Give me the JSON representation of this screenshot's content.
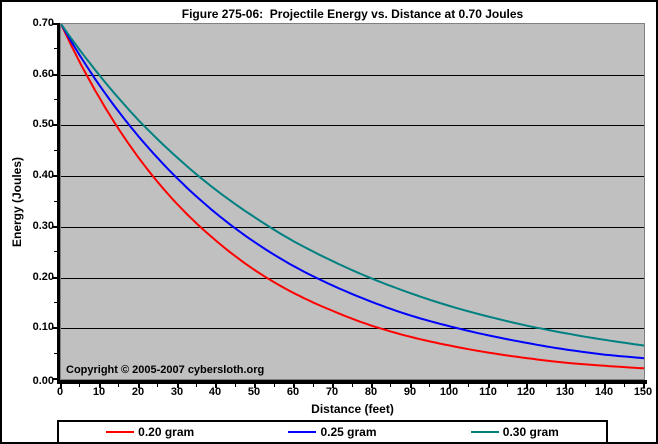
{
  "page": {
    "title": "Figure 275-06:  Projectile Energy vs. Distance at 0.70 Joules",
    "copyright": "Copyright © 2005-2007 cybersloth.org"
  },
  "colors": {
    "plot_background": "#C0C0C0",
    "plot_border": "#808080",
    "gridline": "#000000",
    "axis": "#000000",
    "series_red": "#FF0000",
    "series_blue": "#0000FF",
    "series_teal": "#008080"
  },
  "chart_data": {
    "type": "line",
    "title": "Figure 275-06:  Projectile Energy vs. Distance at 0.70 Joules",
    "xlabel": "Distance (feet)",
    "ylabel": "Energy (Joules)",
    "xlim": [
      0,
      150
    ],
    "ylim": [
      0,
      0.7
    ],
    "x_tick_step": 10,
    "x_minor_tick_step": 5,
    "y_tick_step": 0.1,
    "y_minor_tick_step": 0.05,
    "grid": "horizontal",
    "legend_position": "bottom",
    "x": [
      0,
      10,
      20,
      30,
      40,
      50,
      60,
      70,
      80,
      90,
      100,
      110,
      120,
      130,
      140,
      150
    ],
    "series": [
      {
        "name": "0.20 gram",
        "color": "#FF0000",
        "values": [
          0.7,
          0.553,
          0.436,
          0.344,
          0.272,
          0.214,
          0.169,
          0.134,
          0.105,
          0.083,
          0.066,
          0.052,
          0.041,
          0.032,
          0.026,
          0.021
        ]
      },
      {
        "name": "0.25 gram",
        "color": "#0000FF",
        "values": [
          0.7,
          0.578,
          0.478,
          0.395,
          0.326,
          0.269,
          0.222,
          0.184,
          0.152,
          0.125,
          0.104,
          0.086,
          0.071,
          0.058,
          0.048,
          0.041
        ]
      },
      {
        "name": "0.30 gram",
        "color": "#008080",
        "values": [
          0.7,
          0.598,
          0.51,
          0.436,
          0.372,
          0.318,
          0.271,
          0.232,
          0.198,
          0.169,
          0.144,
          0.123,
          0.105,
          0.09,
          0.077,
          0.066
        ]
      }
    ]
  }
}
